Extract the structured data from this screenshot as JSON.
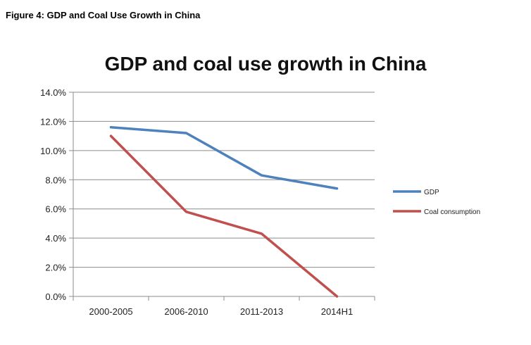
{
  "figure_caption": "Figure 4: GDP and Coal Use Growth in China",
  "chart_data": {
    "type": "line",
    "title": "GDP and coal use growth in China",
    "xlabel": "",
    "ylabel": "",
    "categories": [
      "2000-2005",
      "2006-2010",
      "2011-2013",
      "2014H1"
    ],
    "series": [
      {
        "name": "GDP",
        "values": [
          11.6,
          11.2,
          8.3,
          7.4
        ],
        "color": "#4f81bd"
      },
      {
        "name": "Coal consumption",
        "values": [
          11.0,
          5.8,
          4.3,
          0.0
        ],
        "color": "#c0504d"
      }
    ],
    "ylim": [
      0,
      14
    ],
    "yticks": [
      "0.0%",
      "2.0%",
      "4.0%",
      "6.0%",
      "8.0%",
      "10.0%",
      "12.0%",
      "14.0%"
    ],
    "grid": true,
    "legend": "right"
  }
}
